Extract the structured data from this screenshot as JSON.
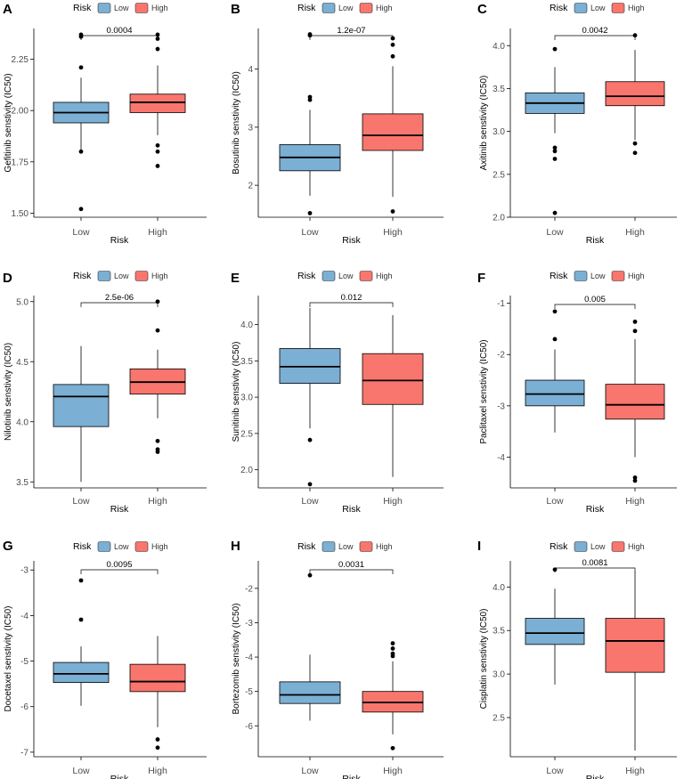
{
  "figure": {
    "legend_title": "Risk",
    "legend_low": "Low",
    "legend_high": "High",
    "low_color": "#7BAFD4",
    "high_color": "#F8766D",
    "x_label": "Risk"
  },
  "chart_data": [
    {
      "type": "boxplot",
      "panel": "A",
      "ylabel": "Gefitinib senstivity (IC50)",
      "categories": [
        "Low",
        "High"
      ],
      "xlabel": "Risk",
      "pvalue": "0.0004",
      "ylim": [
        1.48,
        2.4
      ],
      "yticks": [
        1.5,
        1.75,
        2.0,
        2.25
      ],
      "ytick_labels": [
        "1.50",
        "1.75",
        "2.00",
        "2.25"
      ],
      "series": [
        {
          "name": "Low",
          "min": 1.8,
          "q1": 1.94,
          "median": 1.99,
          "q3": 2.04,
          "max": 2.16,
          "outliers": [
            1.52,
            1.8,
            2.21,
            2.36,
            2.37
          ]
        },
        {
          "name": "High",
          "min": 1.88,
          "q1": 1.99,
          "median": 2.04,
          "q3": 2.08,
          "max": 2.22,
          "outliers": [
            1.73,
            1.8,
            1.83,
            2.3,
            2.35,
            2.37
          ]
        }
      ]
    },
    {
      "type": "boxplot",
      "panel": "B",
      "ylabel": "Bosutinib senstivity (IC50)",
      "categories": [
        "Low",
        "High"
      ],
      "xlabel": "Risk",
      "pvalue": "1.2e-07",
      "ylim": [
        1.45,
        4.7
      ],
      "yticks": [
        2,
        3,
        4
      ],
      "ytick_labels": [
        "2",
        "3",
        "4"
      ],
      "series": [
        {
          "name": "Low",
          "min": 1.82,
          "q1": 2.25,
          "median": 2.48,
          "q3": 2.7,
          "max": 3.3,
          "outliers": [
            1.52,
            3.47,
            3.52,
            4.58,
            4.6
          ]
        },
        {
          "name": "High",
          "min": 1.8,
          "q1": 2.6,
          "median": 2.86,
          "q3": 3.23,
          "max": 4.05,
          "outliers": [
            1.55,
            4.22,
            4.42,
            4.53
          ]
        }
      ]
    },
    {
      "type": "boxplot",
      "panel": "C",
      "ylabel": "Axitinib senstivity (IC50)",
      "categories": [
        "Low",
        "High"
      ],
      "xlabel": "Risk",
      "pvalue": "0.0042",
      "ylim": [
        2.0,
        4.2
      ],
      "yticks": [
        2.0,
        2.5,
        3.0,
        3.5,
        4.0
      ],
      "ytick_labels": [
        "2.0",
        "2.5",
        "3.0",
        "3.5",
        "4.0"
      ],
      "series": [
        {
          "name": "Low",
          "min": 2.98,
          "q1": 3.21,
          "median": 3.33,
          "q3": 3.45,
          "max": 3.75,
          "outliers": [
            2.05,
            2.68,
            2.77,
            2.81,
            3.96
          ]
        },
        {
          "name": "High",
          "min": 2.9,
          "q1": 3.3,
          "median": 3.41,
          "q3": 3.58,
          "max": 3.95,
          "outliers": [
            2.75,
            2.86,
            4.12
          ]
        }
      ]
    },
    {
      "type": "boxplot",
      "panel": "D",
      "ylabel": "Nilotinib senstivity (IC50)",
      "categories": [
        "Low",
        "High"
      ],
      "xlabel": "Risk",
      "pvalue": "2.5e-06",
      "ylim": [
        3.45,
        5.05
      ],
      "yticks": [
        3.5,
        4.0,
        4.5,
        5.0
      ],
      "ytick_labels": [
        "3.5",
        "4.0",
        "4.5",
        "5.0"
      ],
      "series": [
        {
          "name": "Low",
          "min": 3.5,
          "q1": 3.96,
          "median": 4.21,
          "q3": 4.31,
          "max": 4.63,
          "outliers": []
        },
        {
          "name": "High",
          "min": 4.03,
          "q1": 4.23,
          "median": 4.33,
          "q3": 4.44,
          "max": 4.6,
          "outliers": [
            3.75,
            3.77,
            3.84,
            4.76,
            5.0
          ]
        }
      ]
    },
    {
      "type": "boxplot",
      "panel": "E",
      "ylabel": "Sunitinib senstivity (IC50)",
      "categories": [
        "Low",
        "High"
      ],
      "xlabel": "Risk",
      "pvalue": "0.012",
      "ylim": [
        1.75,
        4.4
      ],
      "yticks": [
        2.0,
        2.5,
        3.0,
        3.5,
        4.0
      ],
      "ytick_labels": [
        "2.0",
        "2.5",
        "3.0",
        "3.5",
        "4.0"
      ],
      "series": [
        {
          "name": "Low",
          "min": 2.57,
          "q1": 3.19,
          "median": 3.42,
          "q3": 3.67,
          "max": 4.23,
          "outliers": [
            1.8,
            2.41
          ]
        },
        {
          "name": "High",
          "min": 1.9,
          "q1": 2.9,
          "median": 3.23,
          "q3": 3.6,
          "max": 4.13,
          "outliers": []
        }
      ]
    },
    {
      "type": "boxplot",
      "panel": "F",
      "ylabel": "Paclitaxel senstivity (IC50)",
      "categories": [
        "Low",
        "High"
      ],
      "xlabel": "Risk",
      "pvalue": "0.005",
      "ylim": [
        -4.6,
        -0.85
      ],
      "yticks": [
        -4,
        -3,
        -2,
        -1
      ],
      "ytick_labels": [
        "-4",
        "-3",
        "-2",
        "-1"
      ],
      "series": [
        {
          "name": "Low",
          "min": -3.52,
          "q1": -3.0,
          "median": -2.77,
          "q3": -2.5,
          "max": -1.9,
          "outliers": [
            -1.16,
            -1.7
          ]
        },
        {
          "name": "High",
          "min": -4.0,
          "q1": -3.26,
          "median": -2.98,
          "q3": -2.58,
          "max": -1.7,
          "outliers": [
            -1.36,
            -1.54,
            -4.4,
            -4.46
          ]
        }
      ]
    },
    {
      "type": "boxplot",
      "panel": "G",
      "ylabel": "Docetaxel senstivity (IC50)",
      "categories": [
        "Low",
        "High"
      ],
      "xlabel": "Risk",
      "pvalue": "0.0095",
      "ylim": [
        -7.1,
        -2.8
      ],
      "yticks": [
        -7,
        -6,
        -5,
        -4,
        -3
      ],
      "ytick_labels": [
        "-7",
        "-6",
        "-5",
        "-4",
        "-3"
      ],
      "series": [
        {
          "name": "Low",
          "min": -5.98,
          "q1": -5.47,
          "median": -5.28,
          "q3": -5.03,
          "max": -4.68,
          "outliers": [
            -3.23,
            -4.09
          ]
        },
        {
          "name": "High",
          "min": -6.45,
          "q1": -5.67,
          "median": -5.45,
          "q3": -5.07,
          "max": -4.45,
          "outliers": [
            -6.72,
            -6.9
          ]
        }
      ]
    },
    {
      "type": "boxplot",
      "panel": "H",
      "ylabel": "Bortezomib senstivity (IC50)",
      "categories": [
        "Low",
        "High"
      ],
      "xlabel": "Risk",
      "pvalue": "0.0031",
      "ylim": [
        -6.9,
        -1.2
      ],
      "yticks": [
        -6,
        -5,
        -4,
        -3,
        -2
      ],
      "ytick_labels": [
        "-6",
        "-5",
        "-4",
        "-3",
        "-2"
      ],
      "series": [
        {
          "name": "Low",
          "min": -5.85,
          "q1": -5.35,
          "median": -5.1,
          "q3": -4.72,
          "max": -3.93,
          "outliers": [
            -1.62
          ]
        },
        {
          "name": "High",
          "min": -6.25,
          "q1": -5.6,
          "median": -5.32,
          "q3": -5.0,
          "max": -4.12,
          "outliers": [
            -6.65,
            -3.6,
            -3.75,
            -3.9,
            -3.97
          ]
        }
      ]
    },
    {
      "type": "boxplot",
      "panel": "I",
      "ylabel": "Cisplatin senstivity (IC50)",
      "categories": [
        "Low",
        "High"
      ],
      "xlabel": "Risk",
      "pvalue": "0.0081",
      "ylim": [
        2.05,
        4.3
      ],
      "yticks": [
        2.5,
        3.0,
        3.5,
        4.0
      ],
      "ytick_labels": [
        "2.5",
        "3.0",
        "3.5",
        "4.0"
      ],
      "series": [
        {
          "name": "Low",
          "min": 2.88,
          "q1": 3.34,
          "median": 3.47,
          "q3": 3.64,
          "max": 3.98,
          "outliers": [
            4.2
          ]
        },
        {
          "name": "High",
          "min": 2.12,
          "q1": 3.02,
          "median": 3.38,
          "q3": 3.64,
          "max": 4.18,
          "outliers": []
        }
      ]
    }
  ]
}
